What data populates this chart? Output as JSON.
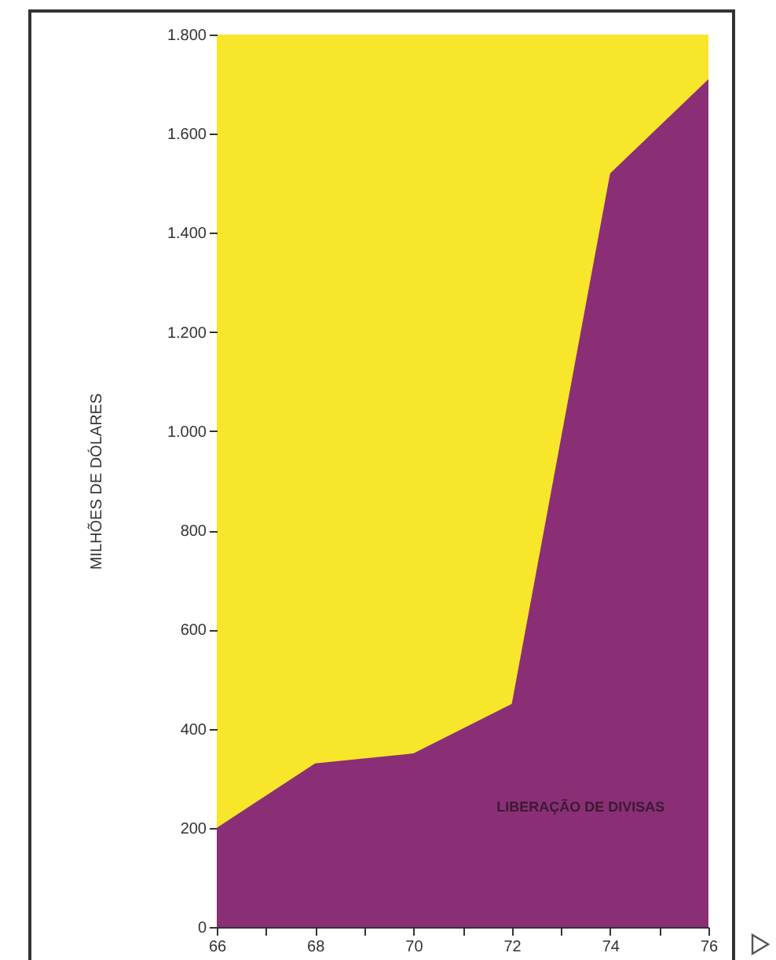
{
  "chart_data": {
    "type": "area",
    "ylabel": "MILHÕES DE DÓLARES",
    "x": [
      66,
      68,
      70,
      72,
      74,
      76
    ],
    "series": [
      {
        "name": "LIBERAÇÃO DE DIVISAS",
        "color": "#8a2f75",
        "values": [
          200,
          330,
          350,
          450,
          1520,
          1710
        ]
      }
    ],
    "xlim": [
      66,
      76
    ],
    "xticks": [
      66,
      {
        "value": 67,
        "label": null
      },
      68,
      {
        "value": 69,
        "label": null
      },
      70,
      {
        "value": 71,
        "label": null
      },
      72,
      {
        "value": 73,
        "label": null
      },
      74,
      {
        "value": 75,
        "label": null
      },
      76
    ],
    "ylim": [
      0,
      1800
    ],
    "yticks": [
      0,
      200,
      400,
      600,
      800,
      {
        "value": 1000,
        "label": "1.000"
      },
      {
        "value": 1200,
        "label": "1.200"
      },
      {
        "value": 1400,
        "label": "1.400"
      },
      {
        "value": 1600,
        "label": "1.600"
      },
      {
        "value": 1800,
        "label": "1.800"
      }
    ],
    "legend": false
  }
}
